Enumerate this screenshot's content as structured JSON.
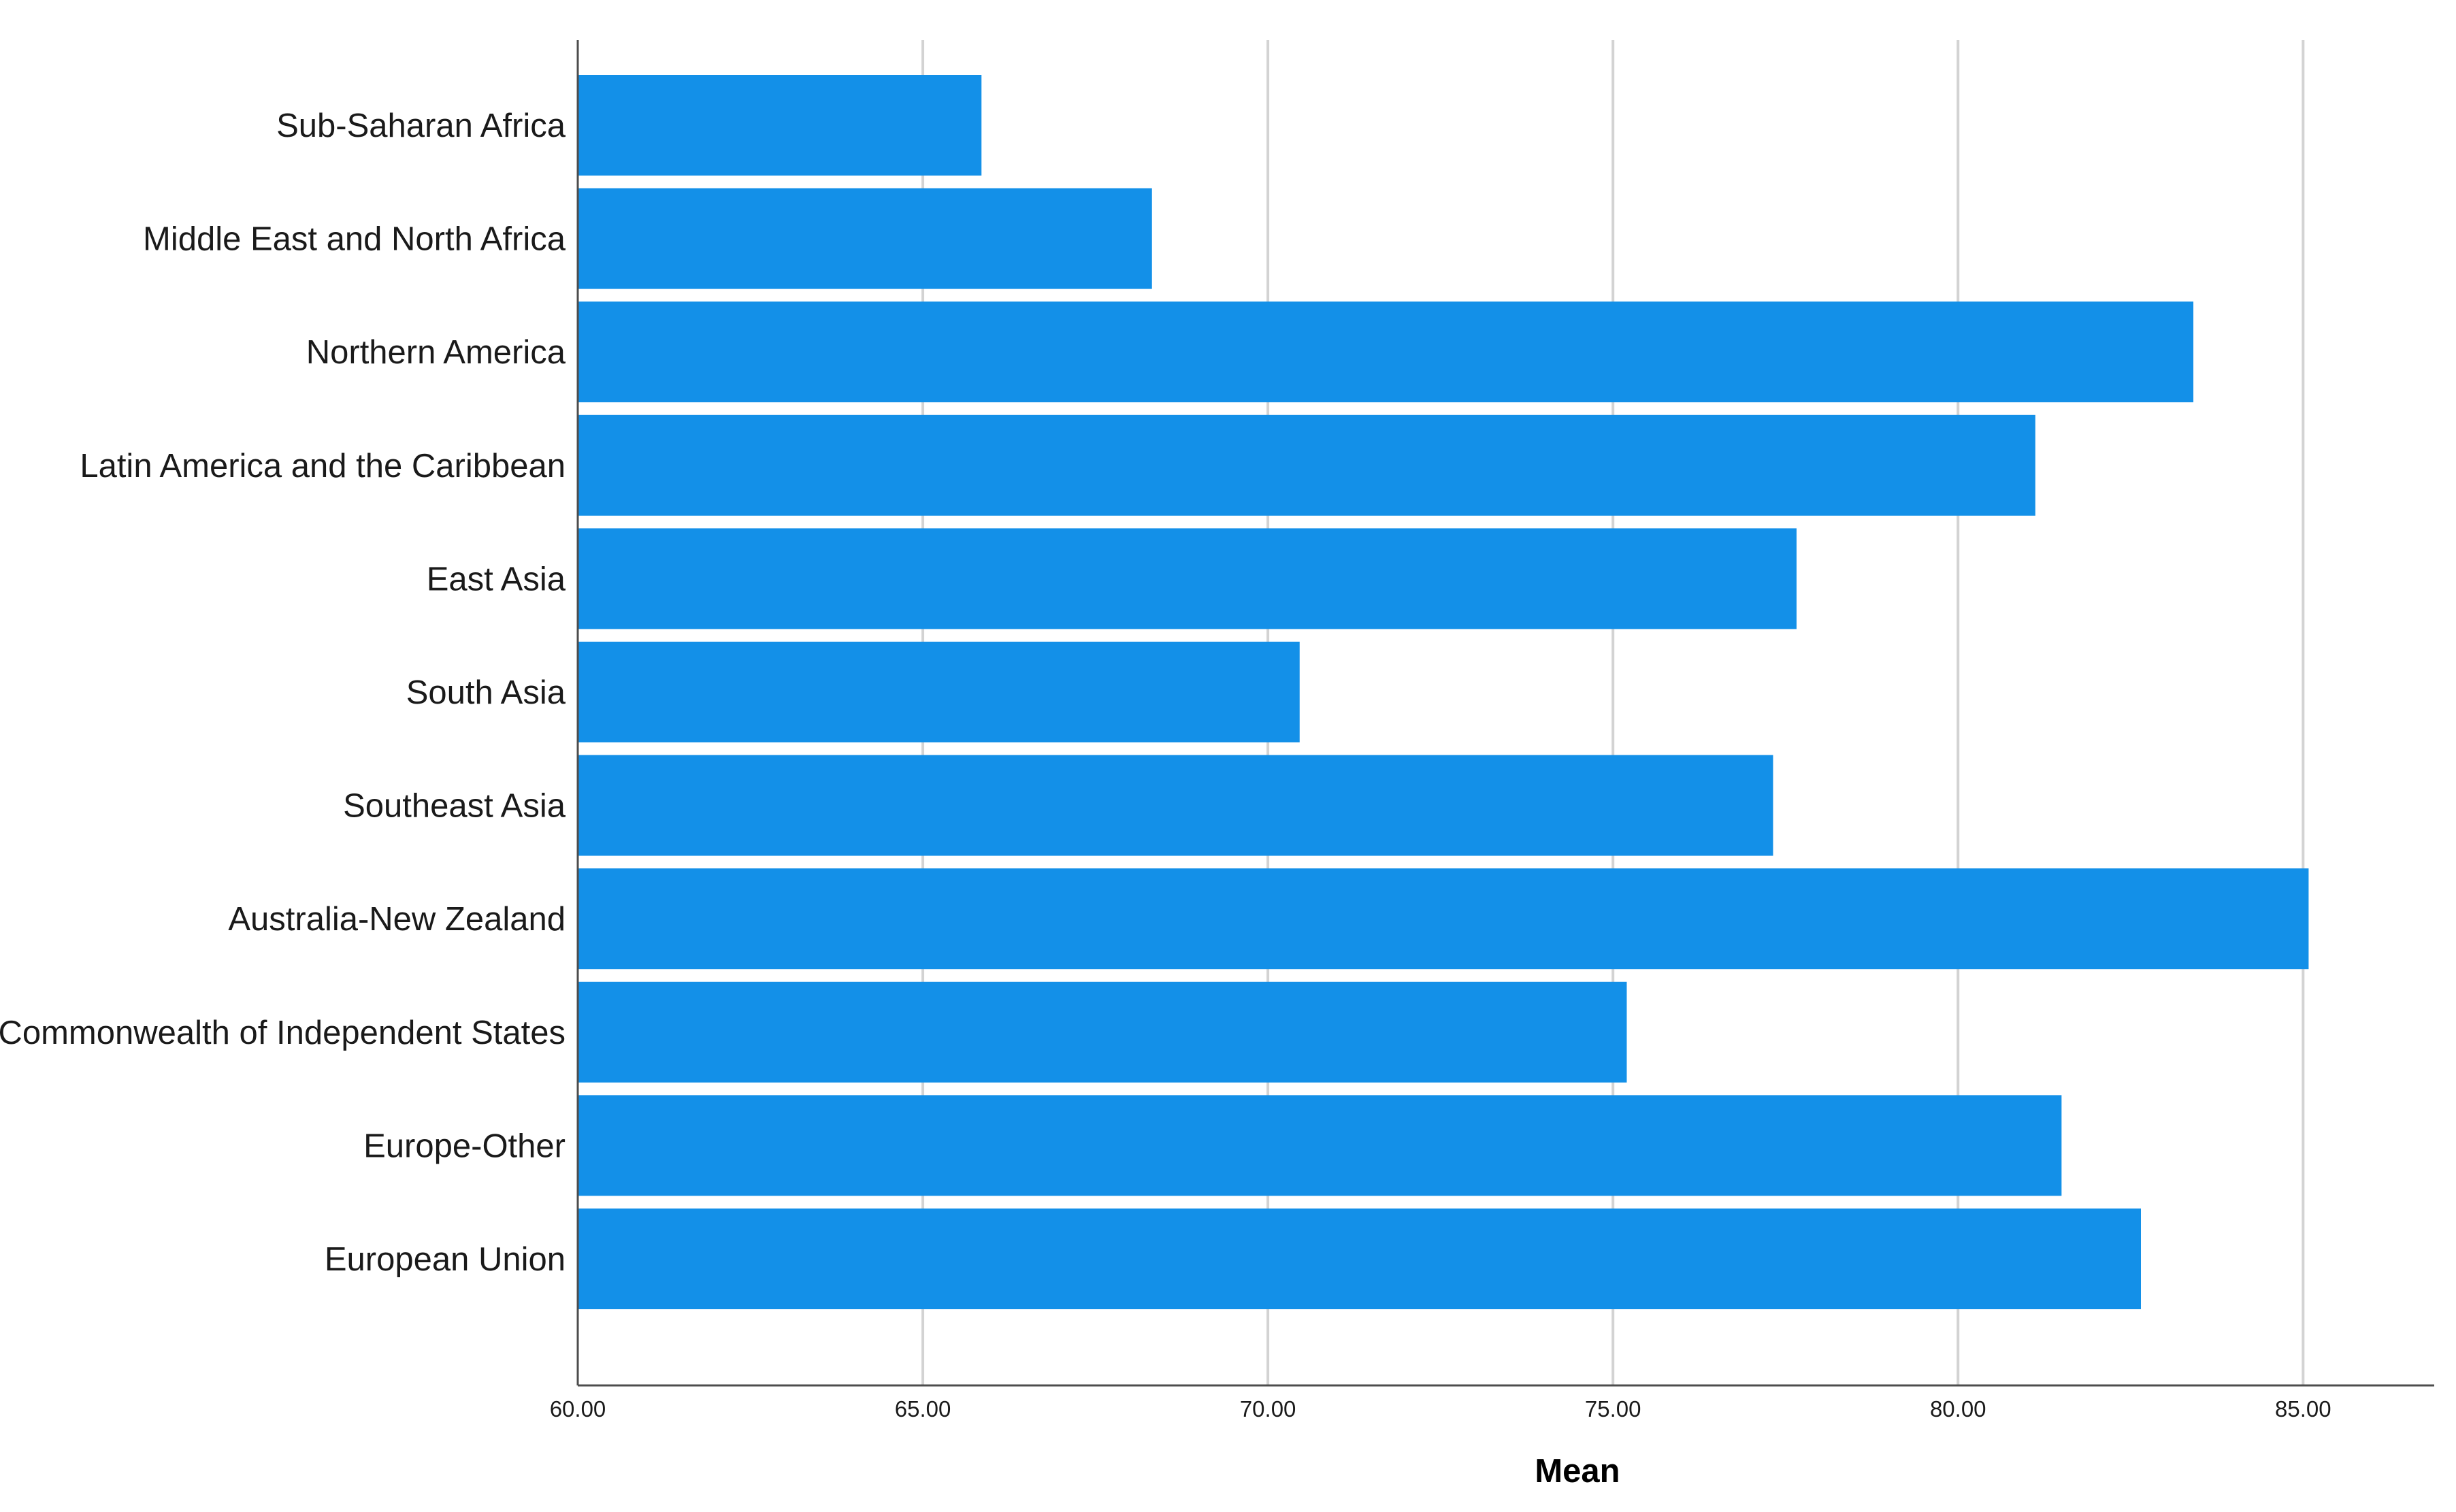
{
  "chart_data": {
    "type": "bar",
    "orientation": "horizontal",
    "title": "",
    "xlabel": "Mean",
    "ylabel": "",
    "categories": [
      "Sub-Saharan Africa",
      "Middle East and North Africa",
      "Northern America",
      "Latin America and the Caribbean",
      "East Asia",
      "South Asia",
      "Southeast Asia",
      "Australia-New Zealand",
      "Commonwealth of Independent States",
      "Europe-Other",
      "European Union"
    ],
    "values": [
      65.85,
      68.32,
      83.41,
      81.12,
      77.66,
      70.46,
      77.32,
      85.08,
      75.2,
      81.5,
      82.65
    ],
    "xlim": [
      60,
      86.9
    ],
    "xticks": [
      60,
      65,
      70,
      75,
      80,
      85
    ],
    "xtick_labels": [
      "60.00",
      "65.00",
      "70.00",
      "75.00",
      "80.00",
      "85.00"
    ],
    "grid": "vertical",
    "legend": "none",
    "colors": {
      "bar": "#1390e8",
      "grid": "#d3d3d3",
      "axis": "#4d4d4d"
    }
  }
}
